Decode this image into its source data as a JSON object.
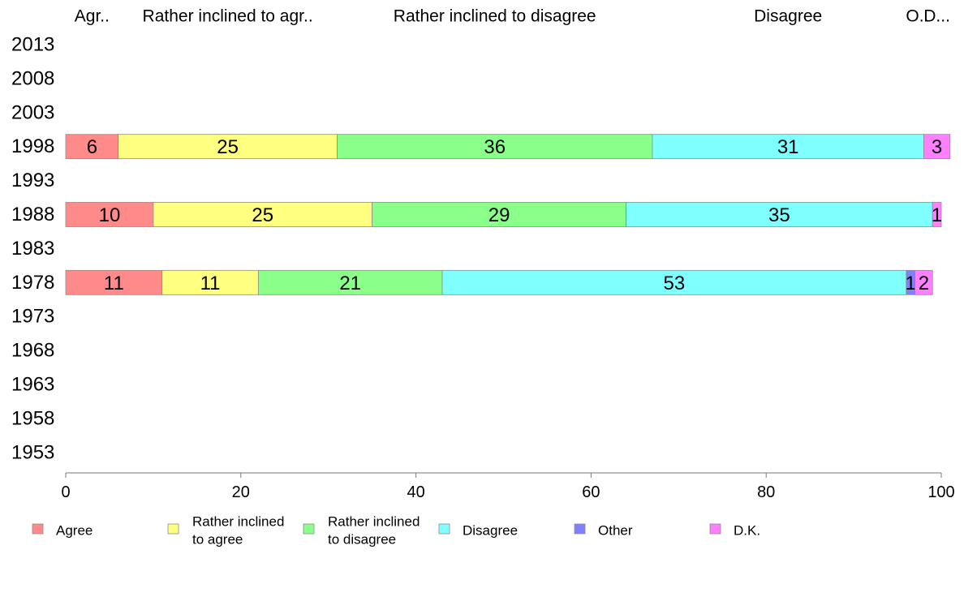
{
  "chart_data": {
    "type": "bar",
    "orientation": "horizontal",
    "stacked": true,
    "categories": [
      "2013",
      "2008",
      "2003",
      "1998",
      "1993",
      "1988",
      "1983",
      "1978",
      "1973",
      "1968",
      "1963",
      "1958",
      "1953"
    ],
    "series": [
      {
        "name": "Agree",
        "color": "#ff8a8a",
        "values": [
          null,
          null,
          null,
          6,
          null,
          10,
          null,
          11,
          null,
          null,
          null,
          null,
          null
        ]
      },
      {
        "name": "Rather inclined to agree",
        "color": "#ffff80",
        "values": [
          null,
          null,
          null,
          25,
          null,
          25,
          null,
          11,
          null,
          null,
          null,
          null,
          null
        ]
      },
      {
        "name": "Rather inclined to disagree",
        "color": "#8aff8a",
        "values": [
          null,
          null,
          null,
          36,
          null,
          29,
          null,
          21,
          null,
          null,
          null,
          null,
          null
        ]
      },
      {
        "name": "Disagree",
        "color": "#80ffff",
        "values": [
          null,
          null,
          null,
          31,
          null,
          35,
          null,
          53,
          null,
          null,
          null,
          null,
          null
        ]
      },
      {
        "name": "Other",
        "color": "#8080ff",
        "values": [
          null,
          null,
          null,
          0,
          null,
          0,
          null,
          1,
          null,
          null,
          null,
          null,
          null
        ]
      },
      {
        "name": "D.K.",
        "color": "#ff80ff",
        "values": [
          null,
          null,
          null,
          3,
          null,
          1,
          null,
          2,
          null,
          null,
          null,
          null,
          null
        ]
      }
    ],
    "top_labels": [
      "Agr..",
      "Rather inclined to agr..",
      "Rather inclined to disagree",
      "Disagree",
      "O..",
      "D..."
    ],
    "xlim": [
      0,
      100
    ],
    "xticks": [
      "0",
      "20",
      "40",
      "60",
      "80",
      "100"
    ],
    "legend": {
      "placement": "bottom",
      "entries": [
        {
          "lines": [
            "Agree"
          ],
          "color": "#ff8a8a"
        },
        {
          "lines": [
            "Rather inclined",
            "to agree"
          ],
          "color": "#ffff80"
        },
        {
          "lines": [
            "Rather inclined",
            "to disagree"
          ],
          "color": "#8aff8a"
        },
        {
          "lines": [
            "Disagree"
          ],
          "color": "#80ffff"
        },
        {
          "lines": [
            "Other"
          ],
          "color": "#8080ff"
        },
        {
          "lines": [
            "D.K."
          ],
          "color": "#ff80ff"
        }
      ]
    }
  }
}
